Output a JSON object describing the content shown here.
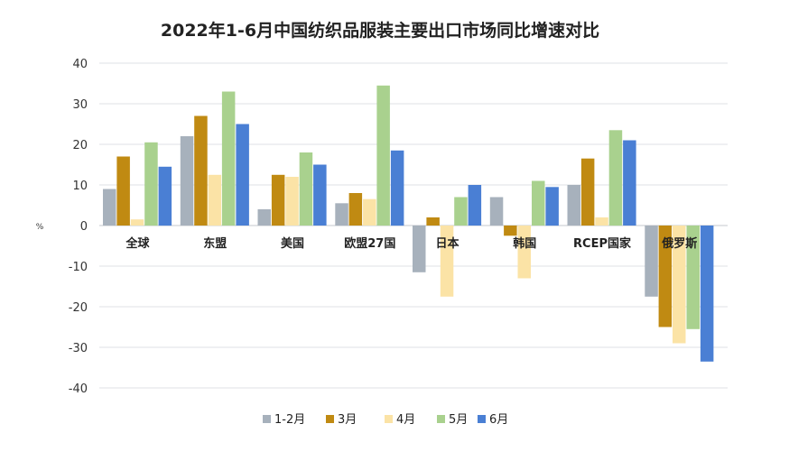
{
  "chart_data": {
    "type": "bar",
    "title": "2022年1-6月中国纺织品服装主要出口市场同比增速对比",
    "ylabel": "%",
    "xlabel": "",
    "ylim": [
      -40,
      40
    ],
    "yticks": [
      40,
      30,
      20,
      10,
      0,
      -10,
      -20,
      -30,
      -40
    ],
    "grid": true,
    "legend_position": "bottom",
    "categories": [
      "全球",
      "东盟",
      "美国",
      "欧盟27国",
      "日本",
      "韩国",
      "RCEP国家",
      "俄罗斯"
    ],
    "series": [
      {
        "name": "1-2月",
        "color": "#a7b1bc",
        "values": [
          9,
          22,
          4,
          5.5,
          -11.5,
          7,
          10,
          -17.5
        ]
      },
      {
        "name": "3月",
        "color": "#c08a12",
        "values": [
          17,
          27,
          12.5,
          8,
          2,
          -2.5,
          16.5,
          -25
        ]
      },
      {
        "name": "4月",
        "color": "#fbe3a6",
        "values": [
          1.5,
          12.5,
          12,
          6.5,
          -17.5,
          -13,
          2,
          -29
        ]
      },
      {
        "name": "5月",
        "color": "#a9d18e",
        "values": [
          20.5,
          33,
          18,
          34.5,
          7,
          11,
          23.5,
          -25.5
        ]
      },
      {
        "name": "6月",
        "color": "#4a7fd4",
        "values": [
          14.5,
          25,
          15,
          18.5,
          10,
          9.5,
          21,
          -33.5
        ]
      }
    ]
  }
}
